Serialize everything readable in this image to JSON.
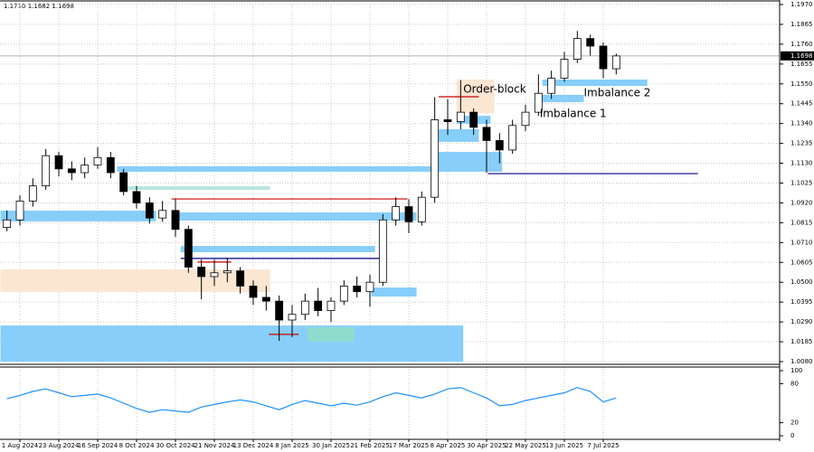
{
  "chart_data": {
    "type": "candlestick",
    "info": "1.1710 1.1682 1.1698",
    "categories": [
      null,
      "1 Aug 2024",
      null,
      null,
      "23 Aug 2024",
      null,
      null,
      "16 Sep 2024",
      null,
      null,
      "8 Oct 2024",
      null,
      null,
      "30 Oct 2024",
      null,
      null,
      "21 Nov 2024",
      null,
      null,
      "13 Dec 2024",
      null,
      null,
      "8 Jan 2025",
      null,
      null,
      "30 Jan 2025",
      null,
      null,
      "21 Feb 2025",
      null,
      null,
      "17 Mar 2025",
      null,
      null,
      "8 Apr 2025",
      null,
      null,
      "30 Apr 2025",
      null,
      null,
      "22 May 2025",
      null,
      null,
      "13 Jun 2025",
      null,
      null,
      "7 Jul 2025",
      null
    ],
    "open": [
      1.079,
      1.083,
      1.093,
      1.101,
      1.117,
      1.11,
      1.108,
      1.112,
      1.116,
      1.108,
      1.098,
      1.092,
      1.084,
      1.088,
      1.078,
      1.058,
      1.053,
      1.055,
      1.056,
      1.048,
      1.042,
      1.04,
      1.03,
      1.033,
      1.04,
      1.035,
      1.04,
      1.048,
      1.045,
      1.05,
      1.083,
      1.09,
      1.082,
      1.095,
      1.136,
      1.135,
      1.14,
      1.132,
      1.125,
      1.12,
      1.133,
      1.14,
      1.15,
      1.158,
      1.168,
      1.179,
      1.175,
      1.163
    ],
    "high": [
      1.088,
      1.096,
      1.105,
      1.1205,
      1.119,
      1.114,
      1.116,
      1.1215,
      1.119,
      1.11,
      1.101,
      1.095,
      1.093,
      1.094,
      1.08,
      1.062,
      1.062,
      1.063,
      1.058,
      1.051,
      1.048,
      1.043,
      1.038,
      1.044,
      1.047,
      1.042,
      1.051,
      1.053,
      1.054,
      1.086,
      1.095,
      1.094,
      1.098,
      1.148,
      1.147,
      1.157,
      1.142,
      1.136,
      1.129,
      1.136,
      1.144,
      1.16,
      1.162,
      1.172,
      1.183,
      1.181,
      1.177,
      1.171
    ],
    "low": [
      1.077,
      1.08,
      1.09,
      1.099,
      1.106,
      1.104,
      1.105,
      1.11,
      1.105,
      1.096,
      1.089,
      1.081,
      1.082,
      1.074,
      1.055,
      1.041,
      1.048,
      1.05,
      1.044,
      1.038,
      1.035,
      1.019,
      1.021,
      1.03,
      1.032,
      1.029,
      1.038,
      1.042,
      1.037,
      1.048,
      1.08,
      1.076,
      1.08,
      1.092,
      1.128,
      1.131,
      1.128,
      1.108,
      1.113,
      1.118,
      1.13,
      1.138,
      1.147,
      1.156,
      1.166,
      1.17,
      1.158,
      1.16
    ],
    "close": [
      1.083,
      1.093,
      1.101,
      1.117,
      1.11,
      1.108,
      1.112,
      1.116,
      1.108,
      1.098,
      1.092,
      1.084,
      1.088,
      1.078,
      1.058,
      1.053,
      1.055,
      1.056,
      1.048,
      1.042,
      1.04,
      1.03,
      1.033,
      1.04,
      1.035,
      1.04,
      1.048,
      1.045,
      1.05,
      1.083,
      1.09,
      1.082,
      1.095,
      1.136,
      1.135,
      1.14,
      1.132,
      1.125,
      1.12,
      1.133,
      1.14,
      1.15,
      1.158,
      1.168,
      1.179,
      1.175,
      1.163,
      1.1698
    ],
    "up_color": "#ffffff",
    "down_color": "#000000",
    "ylim": [
      1.008,
      1.197
    ],
    "yticks": [
      {
        "value": 1.197,
        "label": "1.1970"
      },
      {
        "value": 1.1865,
        "label": "1.1865"
      },
      {
        "value": 1.176,
        "label": "1.1760"
      },
      {
        "value": 1.1655,
        "label": "1.1655"
      },
      {
        "value": 1.155,
        "label": "1.1550"
      },
      {
        "value": 1.1445,
        "label": "1.1445"
      },
      {
        "value": 1.134,
        "label": "1.1340"
      },
      {
        "value": 1.1235,
        "label": "1.1235"
      },
      {
        "value": 1.113,
        "label": "1.1130"
      },
      {
        "value": 1.1025,
        "label": "1.1025"
      },
      {
        "value": 1.092,
        "label": "1.0920"
      },
      {
        "value": 1.0815,
        "label": "1.0815"
      },
      {
        "value": 1.071,
        "label": "1.0710"
      },
      {
        "value": 1.0605,
        "label": "1.0605"
      },
      {
        "value": 1.05,
        "label": "1.0500"
      },
      {
        "value": 1.0395,
        "label": "1.0395"
      },
      {
        "value": 1.029,
        "label": "1.0290"
      },
      {
        "value": 1.0185,
        "label": "1.0185"
      },
      {
        "value": 1.008,
        "label": "1.0080"
      }
    ],
    "last_price": 1.1698,
    "grid": true,
    "zones": [
      {
        "x": [
          -0.5,
          35.2
        ],
        "price": [
          1.008,
          1.0271
        ],
        "color": "#87cefa"
      },
      {
        "x": [
          -0.5,
          20.3
        ],
        "price": [
          1.0448,
          1.0568
        ],
        "color": "#fbe6d2"
      },
      {
        "x": [
          8.5,
          32.8
        ],
        "price": [
          1.1085,
          1.1114
        ],
        "color": "#87cefa"
      },
      {
        "x": [
          -0.5,
          11.5
        ],
        "price": [
          1.0822,
          1.0879
        ],
        "color": "#87cefa"
      },
      {
        "x": [
          8.9,
          20.3
        ],
        "price": [
          1.0989,
          1.1008
        ],
        "color": "#b8e6e0"
      },
      {
        "x": [
          12.7,
          31.6
        ],
        "price": [
          1.0826,
          1.087
        ],
        "color": "#87cefa"
      },
      {
        "x": [
          13.4,
          28.4
        ],
        "price": [
          1.0659,
          1.0692
        ],
        "color": "#87cefa"
      },
      {
        "x": [
          28.1,
          31.6
        ],
        "price": [
          1.0424,
          1.0472
        ],
        "color": "#87cefa"
      },
      {
        "x": [
          23.2,
          26.8
        ],
        "price": [
          1.0185,
          1.0262
        ],
        "color": "#8fdccf"
      },
      {
        "x": [
          33.2,
          38.2
        ],
        "price": [
          1.1085,
          1.119
        ],
        "color": "#87cefa"
      },
      {
        "x": [
          33.3,
          36.4
        ],
        "price": [
          1.1243,
          1.131
        ],
        "color": "#87cefa"
      },
      {
        "x": [
          34.7,
          37.3
        ],
        "price": [
          1.1338,
          1.1381
        ],
        "color": "#87cefa"
      },
      {
        "x": [
          34.7,
          37.6
        ],
        "price": [
          1.1396,
          1.1573
        ],
        "color": "#fbe6d2"
      },
      {
        "x": [
          41.3,
          49.4
        ],
        "price": [
          1.1539,
          1.1573
        ],
        "color": "#87cefa"
      },
      {
        "x": [
          41.3,
          44.5
        ],
        "price": [
          1.1453,
          1.1492
        ],
        "color": "#87cefa"
      }
    ],
    "levels": [
      {
        "x": [
          12.7,
          30.9
        ],
        "price": 1.0941,
        "color": "#cc0000"
      },
      {
        "x": [
          37.1,
          53.3
        ],
        "price": 1.1075,
        "color": "#000080"
      },
      {
        "x": [
          13.4,
          29.3
        ],
        "price": 1.0626,
        "color": "#000080"
      },
      {
        "x": [
          14.7,
          17.3
        ],
        "price": 1.0607,
        "color": "#cc0000"
      },
      {
        "x": [
          20.2,
          22.5
        ],
        "price": 1.0224,
        "color": "#cc0000"
      },
      {
        "x": [
          33.3,
          36.4
        ],
        "price": 1.1482,
        "color": "#cc0000"
      }
    ],
    "annotations": [
      {
        "text": "Order-block",
        "x": 35.2,
        "price": 1.152
      },
      {
        "text": "Imbalance 2",
        "x": 44.5,
        "price": 1.1501
      },
      {
        "text": "Imbalance 1",
        "x": 41.1,
        "price": 1.1391
      }
    ],
    "oscillator": {
      "color": "#1e90ff",
      "values": [
        57,
        62,
        68,
        72,
        66,
        60,
        62,
        64,
        58,
        50,
        42,
        36,
        40,
        38,
        36,
        44,
        48,
        52,
        55,
        52,
        46,
        40,
        48,
        54,
        50,
        46,
        50,
        47,
        52,
        60,
        66,
        62,
        58,
        64,
        72,
        74,
        66,
        58,
        46,
        48,
        54,
        58,
        62,
        66,
        74,
        68,
        52,
        58
      ],
      "ylim": [
        0,
        100
      ],
      "yticks": [
        0,
        20,
        80,
        100
      ]
    }
  }
}
